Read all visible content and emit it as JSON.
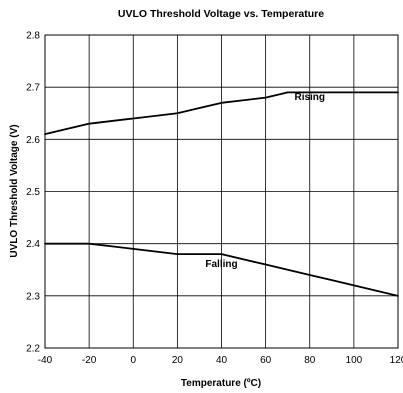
{
  "chart_data": {
    "type": "line",
    "title": "UVLO Threshold Voltage vs. Temperature",
    "xlabel": "Temperature (ºC)",
    "ylabel": "UVLO Threshold Voltage (V)",
    "xlim": [
      -40,
      120
    ],
    "ylim": [
      2.2,
      2.8
    ],
    "xticks": [
      -40,
      -20,
      0,
      20,
      40,
      60,
      80,
      100,
      120
    ],
    "yticks": [
      2.2,
      2.3,
      2.4,
      2.5,
      2.6,
      2.7,
      2.8
    ],
    "xtick_labels": [
      "-40",
      "-20",
      "0",
      "20",
      "40",
      "60",
      "80",
      "100",
      "120"
    ],
    "ytick_labels": [
      "2.2",
      "2.3",
      "2.4",
      "2.5",
      "2.6",
      "2.7",
      "2.8"
    ],
    "grid": true,
    "series": [
      {
        "name": "Rising",
        "x": [
          -40,
          -30,
          -20,
          -10,
          0,
          10,
          20,
          30,
          40,
          50,
          60,
          70,
          80,
          90,
          100,
          110,
          120
        ],
        "y": [
          2.61,
          2.62,
          2.63,
          2.635,
          2.64,
          2.645,
          2.65,
          2.66,
          2.67,
          2.675,
          2.68,
          2.69,
          2.69,
          2.69,
          2.69,
          2.69,
          2.69
        ]
      },
      {
        "name": "Falling",
        "x": [
          -40,
          -30,
          -20,
          -10,
          0,
          10,
          20,
          30,
          40,
          50,
          60,
          70,
          80,
          90,
          100,
          110,
          120
        ],
        "y": [
          2.4,
          2.4,
          2.4,
          2.395,
          2.39,
          2.385,
          2.38,
          2.38,
          2.38,
          2.37,
          2.36,
          2.35,
          2.34,
          2.33,
          2.32,
          2.31,
          2.3
        ]
      }
    ],
    "annotations": [
      {
        "text": "Rising",
        "x": 80,
        "y": 2.675
      },
      {
        "text": "Falling",
        "x": 40,
        "y": 2.355
      }
    ]
  }
}
